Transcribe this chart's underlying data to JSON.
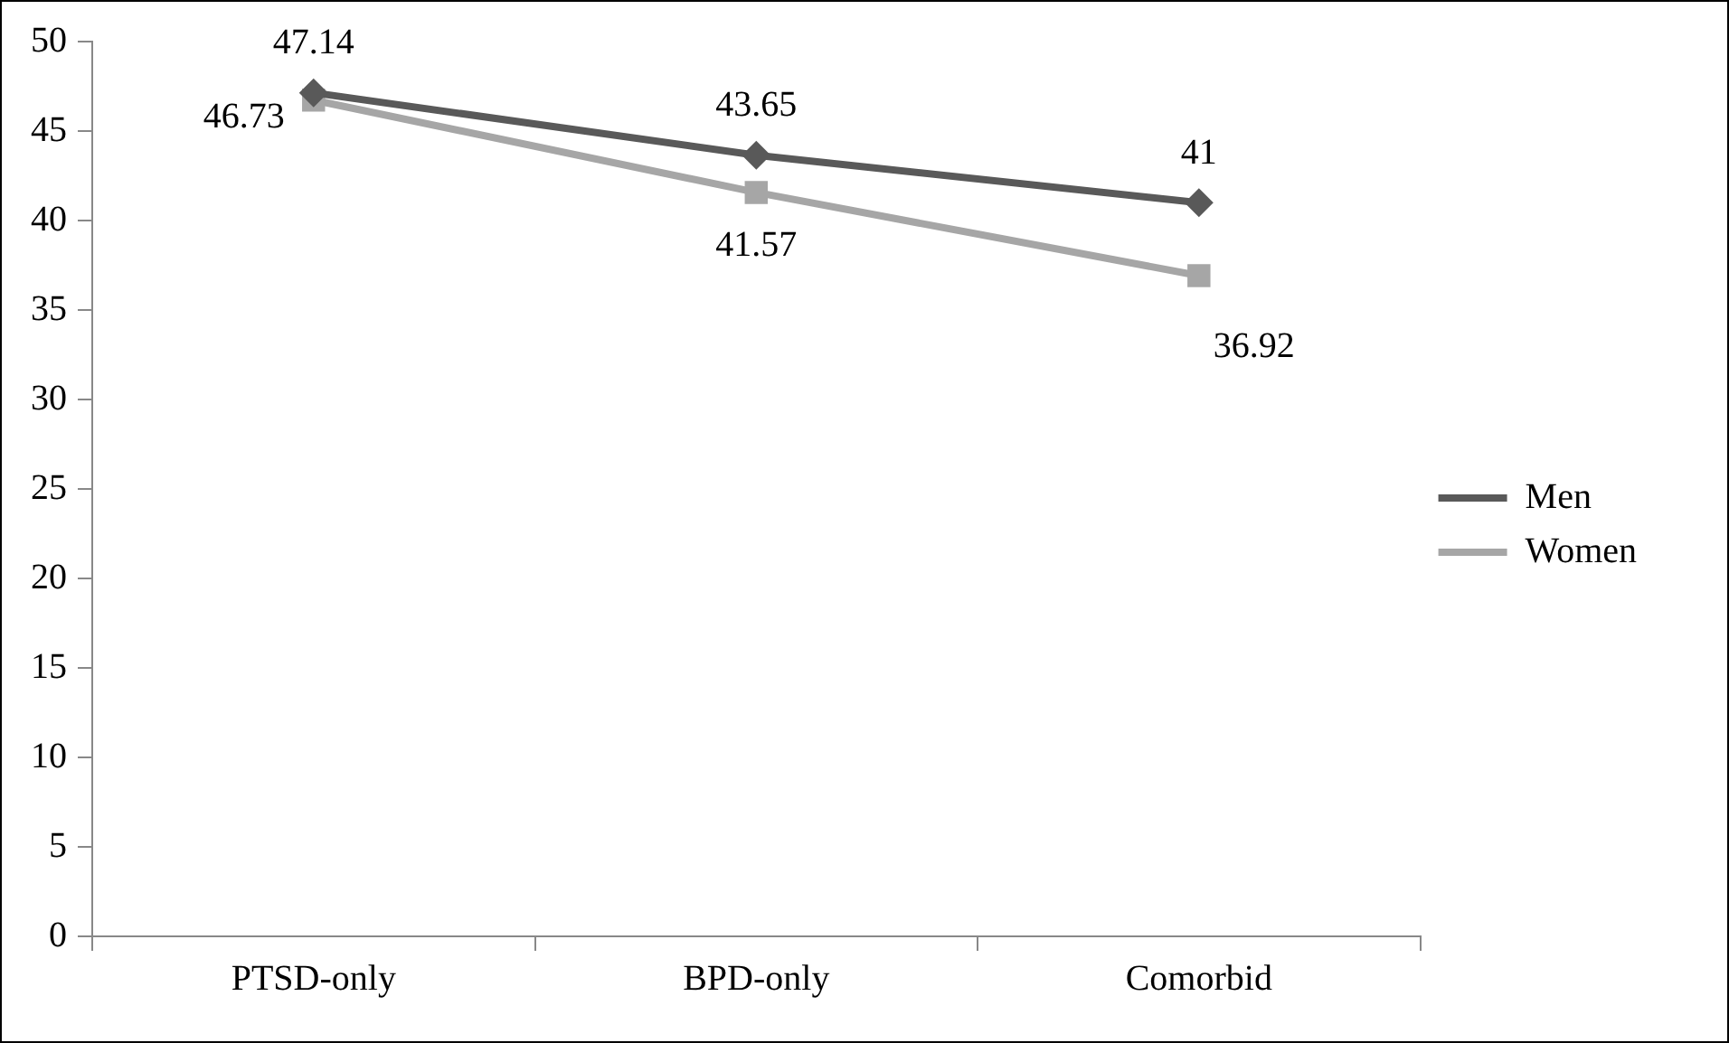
{
  "chart_data": {
    "type": "line",
    "categories": [
      "PTSD-only",
      "BPD-only",
      "Comorbid"
    ],
    "series": [
      {
        "name": "Men",
        "color": "#595959",
        "marker": "diamond",
        "values": [
          47.14,
          43.65,
          41
        ]
      },
      {
        "name": "Women",
        "color": "#a6a6a6",
        "marker": "square",
        "values": [
          46.73,
          41.57,
          36.92
        ]
      }
    ],
    "ylim": [
      0,
      50
    ],
    "yticks": [
      0,
      5,
      10,
      15,
      20,
      25,
      30,
      35,
      40,
      45,
      50
    ],
    "grid": false,
    "legend": "right",
    "data_labels": true
  }
}
